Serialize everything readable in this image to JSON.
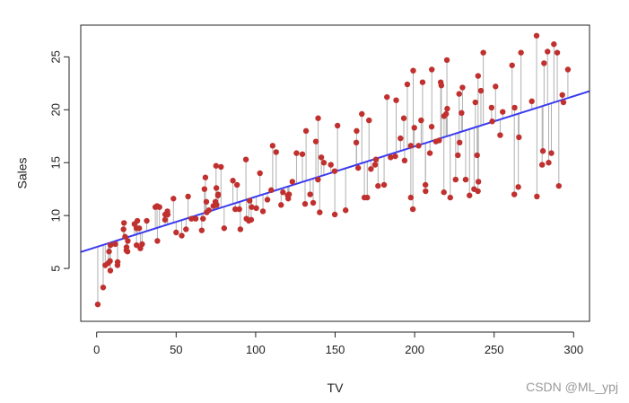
{
  "chart_data": {
    "type": "scatter",
    "xlabel": "TV",
    "ylabel": "Sales",
    "xlim": [
      -10,
      310
    ],
    "ylim": [
      0,
      28
    ],
    "x_ticks": [
      0,
      50,
      100,
      150,
      200,
      250,
      300
    ],
    "y_ticks": [
      5,
      10,
      15,
      20,
      25
    ],
    "grid": false,
    "point_color": "#c0302e",
    "residual_color": "#b0b0b0",
    "fit_color": "#3a3af0",
    "fit_line": {
      "intercept": 7.03,
      "slope": 0.0475
    },
    "points": [
      [
        0.7,
        1.6
      ],
      [
        4.1,
        3.2
      ],
      [
        5.4,
        5.3
      ],
      [
        7.3,
        5.5
      ],
      [
        7.8,
        6.6
      ],
      [
        8.4,
        5.7
      ],
      [
        8.6,
        4.8
      ],
      [
        8.7,
        7.2
      ],
      [
        11.7,
        7.3
      ],
      [
        13.1,
        5.3
      ],
      [
        13.2,
        5.6
      ],
      [
        16.9,
        8.7
      ],
      [
        17.2,
        9.3
      ],
      [
        17.9,
        8.0
      ],
      [
        18.7,
        6.7
      ],
      [
        18.8,
        7.0
      ],
      [
        19.4,
        6.6
      ],
      [
        19.6,
        7.6
      ],
      [
        23.8,
        9.2
      ],
      [
        25.0,
        8.8
      ],
      [
        25.1,
        7.2
      ],
      [
        25.6,
        9.5
      ],
      [
        26.8,
        8.8
      ],
      [
        27.5,
        6.9
      ],
      [
        28.6,
        7.3
      ],
      [
        31.5,
        9.5
      ],
      [
        36.9,
        10.8
      ],
      [
        38.0,
        10.9
      ],
      [
        38.2,
        7.6
      ],
      [
        39.5,
        10.8
      ],
      [
        43.0,
        9.6
      ],
      [
        43.1,
        10.1
      ],
      [
        44.5,
        10.4
      ],
      [
        44.7,
        10.1
      ],
      [
        48.3,
        11.6
      ],
      [
        50.0,
        8.4
      ],
      [
        53.5,
        8.1
      ],
      [
        56.2,
        8.7
      ],
      [
        57.5,
        11.8
      ],
      [
        59.6,
        9.7
      ],
      [
        62.3,
        9.7
      ],
      [
        66.1,
        8.6
      ],
      [
        66.9,
        9.7
      ],
      [
        67.8,
        12.5
      ],
      [
        68.4,
        13.6
      ],
      [
        69.0,
        11.3
      ],
      [
        69.2,
        10.3
      ],
      [
        70.6,
        10.5
      ],
      [
        73.4,
        10.9
      ],
      [
        74.7,
        11.3
      ],
      [
        75.1,
        14.7
      ],
      [
        75.3,
        12.6
      ],
      [
        75.5,
        11.0
      ],
      [
        76.3,
        11.9
      ],
      [
        76.4,
        12.0
      ],
      [
        78.2,
        14.6
      ],
      [
        80.2,
        8.8
      ],
      [
        85.7,
        13.3
      ],
      [
        87.2,
        10.6
      ],
      [
        88.3,
        12.9
      ],
      [
        89.7,
        10.6
      ],
      [
        90.4,
        8.7
      ],
      [
        93.9,
        15.3
      ],
      [
        94.2,
        9.7
      ],
      [
        95.7,
        9.5
      ],
      [
        96.2,
        11.4
      ],
      [
        97.2,
        9.6
      ],
      [
        97.5,
        10.8
      ],
      [
        100.4,
        10.7
      ],
      [
        102.7,
        14.0
      ],
      [
        104.6,
        10.4
      ],
      [
        107.4,
        11.5
      ],
      [
        109.8,
        12.4
      ],
      [
        110.7,
        16.6
      ],
      [
        112.9,
        16.0
      ],
      [
        116.0,
        11.0
      ],
      [
        117.2,
        12.2
      ],
      [
        120.2,
        11.9
      ],
      [
        120.5,
        11.6
      ],
      [
        121.0,
        12.0
      ],
      [
        123.1,
        13.2
      ],
      [
        125.7,
        15.9
      ],
      [
        129.4,
        15.8
      ],
      [
        131.1,
        11.1
      ],
      [
        131.7,
        18.0
      ],
      [
        134.3,
        12.0
      ],
      [
        136.2,
        11.2
      ],
      [
        137.9,
        17.0
      ],
      [
        139.2,
        13.4
      ],
      [
        139.3,
        19.2
      ],
      [
        140.3,
        10.3
      ],
      [
        141.3,
        15.5
      ],
      [
        142.9,
        15.0
      ],
      [
        147.3,
        14.8
      ],
      [
        149.7,
        14.2
      ],
      [
        149.8,
        10.1
      ],
      [
        151.5,
        18.5
      ],
      [
        156.6,
        10.5
      ],
      [
        163.3,
        16.9
      ],
      [
        163.5,
        18.0
      ],
      [
        164.5,
        14.5
      ],
      [
        166.8,
        19.6
      ],
      [
        168.4,
        11.7
      ],
      [
        170.2,
        11.7
      ],
      [
        171.3,
        19.0
      ],
      [
        172.5,
        14.4
      ],
      [
        175.1,
        14.8
      ],
      [
        175.7,
        15.3
      ],
      [
        177.0,
        12.8
      ],
      [
        180.8,
        12.9
      ],
      [
        182.6,
        21.2
      ],
      [
        184.9,
        15.5
      ],
      [
        187.8,
        15.6
      ],
      [
        188.4,
        20.9
      ],
      [
        191.1,
        17.3
      ],
      [
        193.2,
        19.2
      ],
      [
        193.7,
        15.2
      ],
      [
        195.4,
        22.4
      ],
      [
        197.6,
        11.7
      ],
      [
        197.6,
        16.6
      ],
      [
        198.9,
        10.6
      ],
      [
        199.1,
        23.7
      ],
      [
        199.8,
        18.3
      ],
      [
        202.5,
        16.6
      ],
      [
        204.1,
        19.0
      ],
      [
        205.0,
        22.6
      ],
      [
        206.8,
        12.9
      ],
      [
        206.9,
        12.3
      ],
      [
        209.6,
        15.9
      ],
      [
        210.7,
        18.4
      ],
      [
        210.8,
        23.8
      ],
      [
        213.4,
        17.0
      ],
      [
        215.4,
        17.1
      ],
      [
        216.4,
        22.6
      ],
      [
        216.8,
        22.3
      ],
      [
        218.4,
        12.2
      ],
      [
        218.5,
        19.4
      ],
      [
        219.8,
        19.6
      ],
      [
        220.3,
        24.7
      ],
      [
        220.5,
        20.1
      ],
      [
        222.4,
        11.7
      ],
      [
        225.8,
        13.4
      ],
      [
        227.2,
        15.7
      ],
      [
        228.0,
        21.5
      ],
      [
        228.3,
        16.9
      ],
      [
        229.5,
        19.7
      ],
      [
        230.1,
        22.1
      ],
      [
        232.1,
        13.4
      ],
      [
        234.5,
        11.9
      ],
      [
        237.4,
        12.5
      ],
      [
        238.2,
        20.7
      ],
      [
        239.3,
        15.7
      ],
      [
        239.8,
        12.3
      ],
      [
        239.9,
        23.2
      ],
      [
        240.1,
        13.2
      ],
      [
        241.7,
        21.8
      ],
      [
        243.2,
        25.4
      ],
      [
        248.4,
        20.2
      ],
      [
        248.8,
        18.9
      ],
      [
        250.9,
        22.2
      ],
      [
        253.8,
        17.6
      ],
      [
        255.4,
        19.8
      ],
      [
        261.3,
        24.2
      ],
      [
        262.7,
        12.0
      ],
      [
        262.9,
        20.2
      ],
      [
        265.2,
        12.7
      ],
      [
        265.6,
        17.4
      ],
      [
        266.9,
        25.4
      ],
      [
        273.7,
        20.8
      ],
      [
        276.7,
        27.0
      ],
      [
        276.9,
        11.8
      ],
      [
        280.2,
        14.8
      ],
      [
        280.7,
        16.1
      ],
      [
        281.4,
        24.4
      ],
      [
        283.6,
        25.5
      ],
      [
        284.3,
        15.0
      ],
      [
        286.0,
        15.9
      ],
      [
        287.6,
        26.2
      ],
      [
        289.7,
        25.4
      ],
      [
        290.7,
        12.8
      ],
      [
        292.9,
        21.4
      ],
      [
        293.6,
        20.7
      ],
      [
        296.4,
        23.8
      ]
    ]
  },
  "watermark": "CSDN @ML_ypj"
}
